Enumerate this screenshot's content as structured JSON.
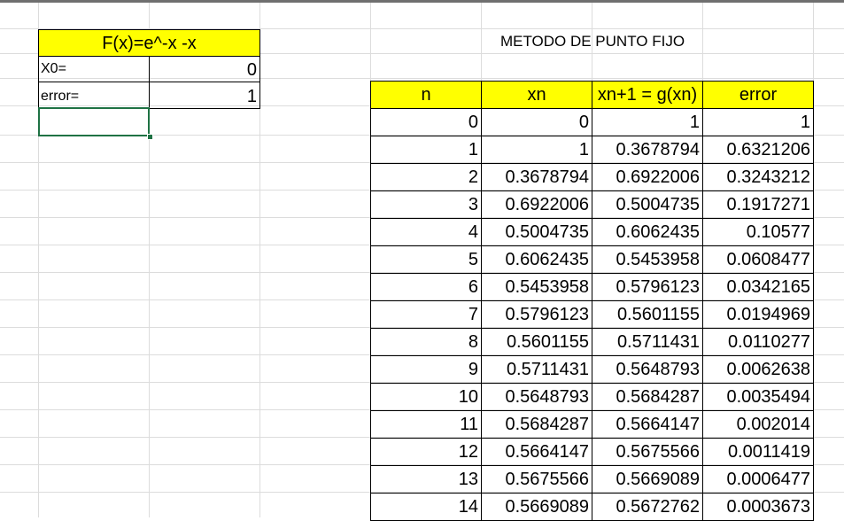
{
  "function_box": {
    "title": "F(x)=e^-x -x",
    "rows": [
      {
        "label": "X0=",
        "value": "0"
      },
      {
        "label": "error=",
        "value": "1"
      }
    ]
  },
  "table": {
    "title": "METODO DE PUNTO FIJO",
    "headers": [
      "n",
      "xn",
      "xn+1 =  g(xn)",
      "error"
    ],
    "rows": [
      [
        "0",
        "0",
        "1",
        "1"
      ],
      [
        "1",
        "1",
        "0.3678794",
        "0.6321206"
      ],
      [
        "2",
        "0.3678794",
        "0.6922006",
        "0.3243212"
      ],
      [
        "3",
        "0.6922006",
        "0.5004735",
        "0.1917271"
      ],
      [
        "4",
        "0.5004735",
        "0.6062435",
        "0.10577"
      ],
      [
        "5",
        "0.6062435",
        "0.5453958",
        "0.0608477"
      ],
      [
        "6",
        "0.5453958",
        "0.5796123",
        "0.0342165"
      ],
      [
        "7",
        "0.5796123",
        "0.5601155",
        "0.0194969"
      ],
      [
        "8",
        "0.5601155",
        "0.5711431",
        "0.0110277"
      ],
      [
        "9",
        "0.5711431",
        "0.5648793",
        "0.0062638"
      ],
      [
        "10",
        "0.5648793",
        "0.5684287",
        "0.0035494"
      ],
      [
        "11",
        "0.5684287",
        "0.5664147",
        "0.002014"
      ],
      [
        "12",
        "0.5664147",
        "0.5675566",
        "0.0011419"
      ],
      [
        "13",
        "0.5675566",
        "0.5669089",
        "0.0006477"
      ],
      [
        "14",
        "0.5669089",
        "0.5672762",
        "0.0003673"
      ]
    ]
  },
  "colors": {
    "header_fill": "#ffff00",
    "selection": "#1f7244",
    "gridline": "#dcdcdc"
  }
}
